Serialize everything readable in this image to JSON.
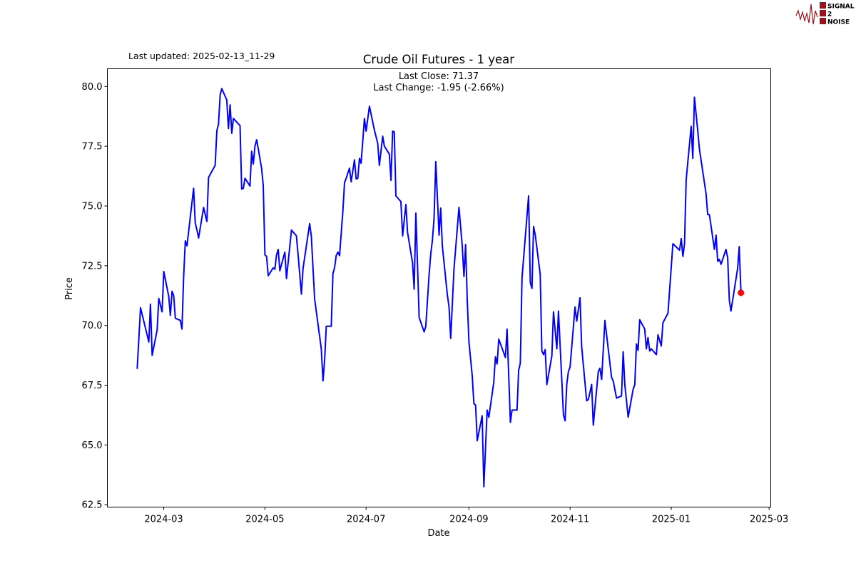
{
  "header": {
    "last_updated": "Last updated: 2025-02-13_11-29",
    "logo_text": [
      "SIGNAL",
      "2",
      "NOISE"
    ]
  },
  "annotation": {
    "last_close": "Last Close: 71.37",
    "last_change": "Last Change: -1.95 (-2.66%)"
  },
  "colors": {
    "line": "#0000ff",
    "last_point": "#ff0000",
    "logo": "#a0101a"
  },
  "chart_data": {
    "type": "line",
    "title": "Crude Oil Futures - 1 year",
    "xlabel": "Date",
    "ylabel": "Price",
    "ylim": [
      62.4,
      80.74
    ],
    "xlim": [
      "2024-01-27",
      "2025-03-02"
    ],
    "yticks": [
      62.5,
      65.0,
      67.5,
      70.0,
      72.5,
      75.0,
      77.5,
      80.0
    ],
    "ytick_labels": [
      "62.5",
      "65.0",
      "67.5",
      "70.0",
      "72.5",
      "75.0",
      "77.5",
      "80.0"
    ],
    "xticks": [
      "2024-03-01",
      "2024-05-01",
      "2024-07-01",
      "2024-09-01",
      "2024-11-01",
      "2025-01-01",
      "2025-03-01"
    ],
    "xtick_labels": [
      "2024-03",
      "2024-05",
      "2024-07",
      "2024-09",
      "2024-11",
      "2025-01",
      "2025-03"
    ],
    "grid": false,
    "last_point": {
      "date": "2025-02-12",
      "value": 71.37
    },
    "series": [
      {
        "points": [
          [
            "2024-02-14",
            68.18
          ],
          [
            "2024-02-16",
            70.74
          ],
          [
            "2024-02-21",
            69.31
          ],
          [
            "2024-02-22",
            70.89
          ],
          [
            "2024-02-23",
            68.75
          ],
          [
            "2024-02-26",
            69.82
          ],
          [
            "2024-02-27",
            71.13
          ],
          [
            "2024-02-29",
            70.57
          ],
          [
            "2024-03-01",
            72.26
          ],
          [
            "2024-03-04",
            71.22
          ],
          [
            "2024-03-05",
            70.42
          ],
          [
            "2024-03-06",
            71.43
          ],
          [
            "2024-03-07",
            71.25
          ],
          [
            "2024-03-08",
            70.3
          ],
          [
            "2024-03-11",
            70.21
          ],
          [
            "2024-03-12",
            69.85
          ],
          [
            "2024-03-13",
            72.02
          ],
          [
            "2024-03-14",
            73.54
          ],
          [
            "2024-03-15",
            73.33
          ],
          [
            "2024-03-19",
            75.74
          ],
          [
            "2024-03-20",
            74.29
          ],
          [
            "2024-03-21",
            73.99
          ],
          [
            "2024-03-22",
            73.66
          ],
          [
            "2024-03-25",
            74.94
          ],
          [
            "2024-03-27",
            74.35
          ],
          [
            "2024-03-28",
            76.19
          ],
          [
            "2024-04-01",
            76.7
          ],
          [
            "2024-04-02",
            78.15
          ],
          [
            "2024-04-03",
            78.42
          ],
          [
            "2024-04-04",
            79.64
          ],
          [
            "2024-04-05",
            79.91
          ],
          [
            "2024-04-08",
            79.43
          ],
          [
            "2024-04-09",
            78.24
          ],
          [
            "2024-04-10",
            79.23
          ],
          [
            "2024-04-11",
            78.04
          ],
          [
            "2024-04-12",
            78.66
          ],
          [
            "2024-04-16",
            78.36
          ],
          [
            "2024-04-17",
            75.71
          ],
          [
            "2024-04-18",
            75.74
          ],
          [
            "2024-04-19",
            76.16
          ],
          [
            "2024-04-22",
            75.83
          ],
          [
            "2024-04-23",
            77.29
          ],
          [
            "2024-04-24",
            76.76
          ],
          [
            "2024-04-25",
            77.5
          ],
          [
            "2024-04-26",
            77.77
          ],
          [
            "2024-04-29",
            76.58
          ],
          [
            "2024-04-30",
            75.86
          ],
          [
            "2024-05-01",
            72.95
          ],
          [
            "2024-05-02",
            72.89
          ],
          [
            "2024-05-03",
            72.08
          ],
          [
            "2024-05-06",
            72.41
          ],
          [
            "2024-05-07",
            72.35
          ],
          [
            "2024-05-08",
            72.95
          ],
          [
            "2024-05-09",
            73.18
          ],
          [
            "2024-05-10",
            72.29
          ],
          [
            "2024-05-13",
            73.07
          ],
          [
            "2024-05-14",
            71.96
          ],
          [
            "2024-05-17",
            73.99
          ],
          [
            "2024-05-20",
            73.75
          ],
          [
            "2024-05-21",
            72.95
          ],
          [
            "2024-05-23",
            71.31
          ],
          [
            "2024-05-24",
            72.38
          ],
          [
            "2024-05-28",
            74.26
          ],
          [
            "2024-05-29",
            73.72
          ],
          [
            "2024-05-30",
            72.38
          ],
          [
            "2024-05-31",
            71.1
          ],
          [
            "2024-06-04",
            69.02
          ],
          [
            "2024-06-05",
            67.68
          ],
          [
            "2024-06-06",
            68.57
          ],
          [
            "2024-06-07",
            69.97
          ],
          [
            "2024-06-10",
            69.97
          ],
          [
            "2024-06-11",
            72.17
          ],
          [
            "2024-06-12",
            72.41
          ],
          [
            "2024-06-13",
            72.92
          ],
          [
            "2024-06-14",
            73.07
          ],
          [
            "2024-06-15",
            72.92
          ],
          [
            "2024-06-17",
            74.76
          ],
          [
            "2024-06-18",
            75.98
          ],
          [
            "2024-06-19",
            76.16
          ],
          [
            "2024-06-21",
            76.58
          ],
          [
            "2024-06-22",
            76.01
          ],
          [
            "2024-06-24",
            76.93
          ],
          [
            "2024-06-25",
            76.13
          ],
          [
            "2024-06-26",
            76.16
          ],
          [
            "2024-06-27",
            76.99
          ],
          [
            "2024-06-28",
            76.79
          ],
          [
            "2024-06-30",
            78.66
          ],
          [
            "2024-07-01",
            78.13
          ],
          [
            "2024-07-03",
            79.17
          ],
          [
            "2024-07-06",
            78.18
          ],
          [
            "2024-07-08",
            77.62
          ],
          [
            "2024-07-09",
            76.7
          ],
          [
            "2024-07-11",
            77.92
          ],
          [
            "2024-07-12",
            77.5
          ],
          [
            "2024-07-15",
            77.17
          ],
          [
            "2024-07-16",
            76.07
          ],
          [
            "2024-07-17",
            78.13
          ],
          [
            "2024-07-18",
            78.1
          ],
          [
            "2024-07-19",
            75.42
          ],
          [
            "2024-07-22",
            75.18
          ],
          [
            "2024-07-23",
            73.75
          ],
          [
            "2024-07-25",
            75.06
          ],
          [
            "2024-07-26",
            73.9
          ],
          [
            "2024-07-29",
            72.62
          ],
          [
            "2024-07-30",
            71.52
          ],
          [
            "2024-07-31",
            74.7
          ],
          [
            "2024-08-02",
            70.33
          ],
          [
            "2024-08-05",
            69.73
          ],
          [
            "2024-08-06",
            69.97
          ],
          [
            "2024-08-08",
            72.11
          ],
          [
            "2024-08-09",
            73.01
          ],
          [
            "2024-08-10",
            73.57
          ],
          [
            "2024-08-11",
            74.49
          ],
          [
            "2024-08-12",
            76.85
          ],
          [
            "2024-08-14",
            73.78
          ],
          [
            "2024-08-15",
            74.91
          ],
          [
            "2024-08-16",
            73.33
          ],
          [
            "2024-08-19",
            71.28
          ],
          [
            "2024-08-20",
            70.77
          ],
          [
            "2024-08-21",
            69.46
          ],
          [
            "2024-08-23",
            72.35
          ],
          [
            "2024-08-26",
            74.94
          ],
          [
            "2024-08-28",
            73.33
          ],
          [
            "2024-08-29",
            72.05
          ],
          [
            "2024-08-30",
            73.39
          ],
          [
            "2024-08-31",
            71.07
          ],
          [
            "2024-09-01",
            69.31
          ],
          [
            "2024-09-03",
            67.89
          ],
          [
            "2024-09-04",
            66.73
          ],
          [
            "2024-09-05",
            66.67
          ],
          [
            "2024-09-06",
            65.18
          ],
          [
            "2024-09-09",
            66.22
          ],
          [
            "2024-09-10",
            63.25
          ],
          [
            "2024-09-12",
            66.46
          ],
          [
            "2024-09-13",
            66.16
          ],
          [
            "2024-09-16",
            67.62
          ],
          [
            "2024-09-17",
            68.69
          ],
          [
            "2024-09-18",
            68.39
          ],
          [
            "2024-09-19",
            69.43
          ],
          [
            "2024-09-23",
            68.66
          ],
          [
            "2024-09-24",
            69.85
          ],
          [
            "2024-09-26",
            65.95
          ],
          [
            "2024-09-27",
            66.46
          ],
          [
            "2024-09-30",
            66.46
          ],
          [
            "2024-10-01",
            68.13
          ],
          [
            "2024-10-02",
            68.42
          ],
          [
            "2024-10-03",
            72.0
          ],
          [
            "2024-10-07",
            75.42
          ],
          [
            "2024-10-08",
            71.79
          ],
          [
            "2024-10-09",
            71.55
          ],
          [
            "2024-10-10",
            74.14
          ],
          [
            "2024-10-11",
            73.78
          ],
          [
            "2024-10-14",
            72.14
          ],
          [
            "2024-10-15",
            68.93
          ],
          [
            "2024-10-16",
            68.78
          ],
          [
            "2024-10-17",
            68.99
          ],
          [
            "2024-10-18",
            67.53
          ],
          [
            "2024-10-21",
            68.72
          ],
          [
            "2024-10-22",
            70.57
          ],
          [
            "2024-10-24",
            69.02
          ],
          [
            "2024-10-25",
            70.6
          ],
          [
            "2024-10-28",
            66.25
          ],
          [
            "2024-10-29",
            66.01
          ],
          [
            "2024-10-30",
            67.53
          ],
          [
            "2024-10-31",
            68.07
          ],
          [
            "2024-11-01",
            68.27
          ],
          [
            "2024-11-04",
            70.77
          ],
          [
            "2024-11-05",
            70.18
          ],
          [
            "2024-11-07",
            71.16
          ],
          [
            "2024-11-08",
            69.11
          ],
          [
            "2024-11-11",
            66.85
          ],
          [
            "2024-11-12",
            66.9
          ],
          [
            "2024-11-14",
            67.53
          ],
          [
            "2024-11-15",
            65.83
          ],
          [
            "2024-11-18",
            68.07
          ],
          [
            "2024-11-19",
            68.21
          ],
          [
            "2024-11-20",
            67.74
          ],
          [
            "2024-11-22",
            70.21
          ],
          [
            "2024-11-26",
            67.83
          ],
          [
            "2024-11-27",
            67.68
          ],
          [
            "2024-11-29",
            66.96
          ],
          [
            "2024-12-02",
            67.05
          ],
          [
            "2024-12-03",
            68.9
          ],
          [
            "2024-12-04",
            67.53
          ],
          [
            "2024-12-06",
            66.16
          ],
          [
            "2024-12-09",
            67.32
          ],
          [
            "2024-12-10",
            67.53
          ],
          [
            "2024-12-11",
            69.23
          ],
          [
            "2024-12-12",
            68.96
          ],
          [
            "2024-12-13",
            70.24
          ],
          [
            "2024-12-16",
            69.85
          ],
          [
            "2024-12-17",
            69.02
          ],
          [
            "2024-12-18",
            69.49
          ],
          [
            "2024-12-19",
            68.93
          ],
          [
            "2024-12-20",
            69.02
          ],
          [
            "2024-12-23",
            68.78
          ],
          [
            "2024-12-24",
            69.61
          ],
          [
            "2024-12-26",
            69.14
          ],
          [
            "2024-12-27",
            70.12
          ],
          [
            "2024-12-30",
            70.51
          ],
          [
            "2025-01-02",
            73.42
          ],
          [
            "2025-01-06",
            73.15
          ],
          [
            "2025-01-07",
            73.63
          ],
          [
            "2025-01-08",
            72.89
          ],
          [
            "2025-01-09",
            73.42
          ],
          [
            "2025-01-10",
            76.1
          ],
          [
            "2025-01-13",
            78.33
          ],
          [
            "2025-01-14",
            76.99
          ],
          [
            "2025-01-15",
            79.55
          ],
          [
            "2025-01-17",
            78.13
          ],
          [
            "2025-01-18",
            77.38
          ],
          [
            "2025-01-22",
            75.51
          ],
          [
            "2025-01-23",
            74.64
          ],
          [
            "2025-01-24",
            74.64
          ],
          [
            "2025-01-27",
            73.18
          ],
          [
            "2025-01-28",
            73.78
          ],
          [
            "2025-01-29",
            72.68
          ],
          [
            "2025-01-30",
            72.77
          ],
          [
            "2025-01-31",
            72.56
          ],
          [
            "2025-02-03",
            73.18
          ],
          [
            "2025-02-04",
            72.83
          ],
          [
            "2025-02-05",
            71.07
          ],
          [
            "2025-02-06",
            70.6
          ],
          [
            "2025-02-10",
            72.38
          ],
          [
            "2025-02-11",
            73.3
          ],
          [
            "2025-02-12",
            71.37
          ]
        ]
      }
    ]
  }
}
